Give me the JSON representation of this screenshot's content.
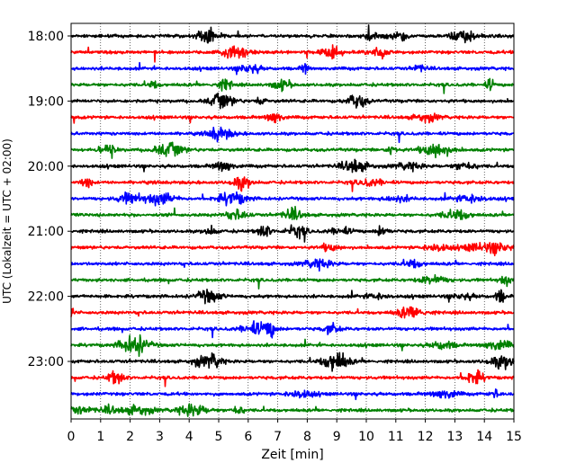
{
  "chart_data": {
    "type": "line",
    "title": "",
    "xlabel": "Zeit  [min]",
    "ylabel": "UTC (Lokalzeit = UTC + 02:00)",
    "x_range": [
      0,
      15
    ],
    "x_ticks": [
      "0",
      "1",
      "2",
      "3",
      "4",
      "5",
      "6",
      "7",
      "8",
      "9",
      "10",
      "11",
      "12",
      "13",
      "14",
      "15"
    ],
    "y_tick_labels": [
      "18:00",
      "19:00",
      "20:00",
      "21:00",
      "22:00",
      "23:00"
    ],
    "grid": "vertical dotted at each minute",
    "trace_minutes": 15,
    "trace_colors": [
      "#000000",
      "#ff0000",
      "#0000ff",
      "#008000"
    ],
    "traces": [
      {
        "start": "18:00"
      },
      {
        "start": "18:15"
      },
      {
        "start": "18:30"
      },
      {
        "start": "18:45"
      },
      {
        "start": "19:00"
      },
      {
        "start": "19:15"
      },
      {
        "start": "19:30"
      },
      {
        "start": "19:45"
      },
      {
        "start": "20:00"
      },
      {
        "start": "20:15"
      },
      {
        "start": "20:30"
      },
      {
        "start": "20:45"
      },
      {
        "start": "21:00"
      },
      {
        "start": "21:15"
      },
      {
        "start": "21:30"
      },
      {
        "start": "21:45"
      },
      {
        "start": "22:00"
      },
      {
        "start": "22:15"
      },
      {
        "start": "22:30"
      },
      {
        "start": "22:45"
      },
      {
        "start": "23:00"
      },
      {
        "start": "23:15"
      },
      {
        "start": "23:30"
      },
      {
        "start": "23:45"
      }
    ]
  }
}
